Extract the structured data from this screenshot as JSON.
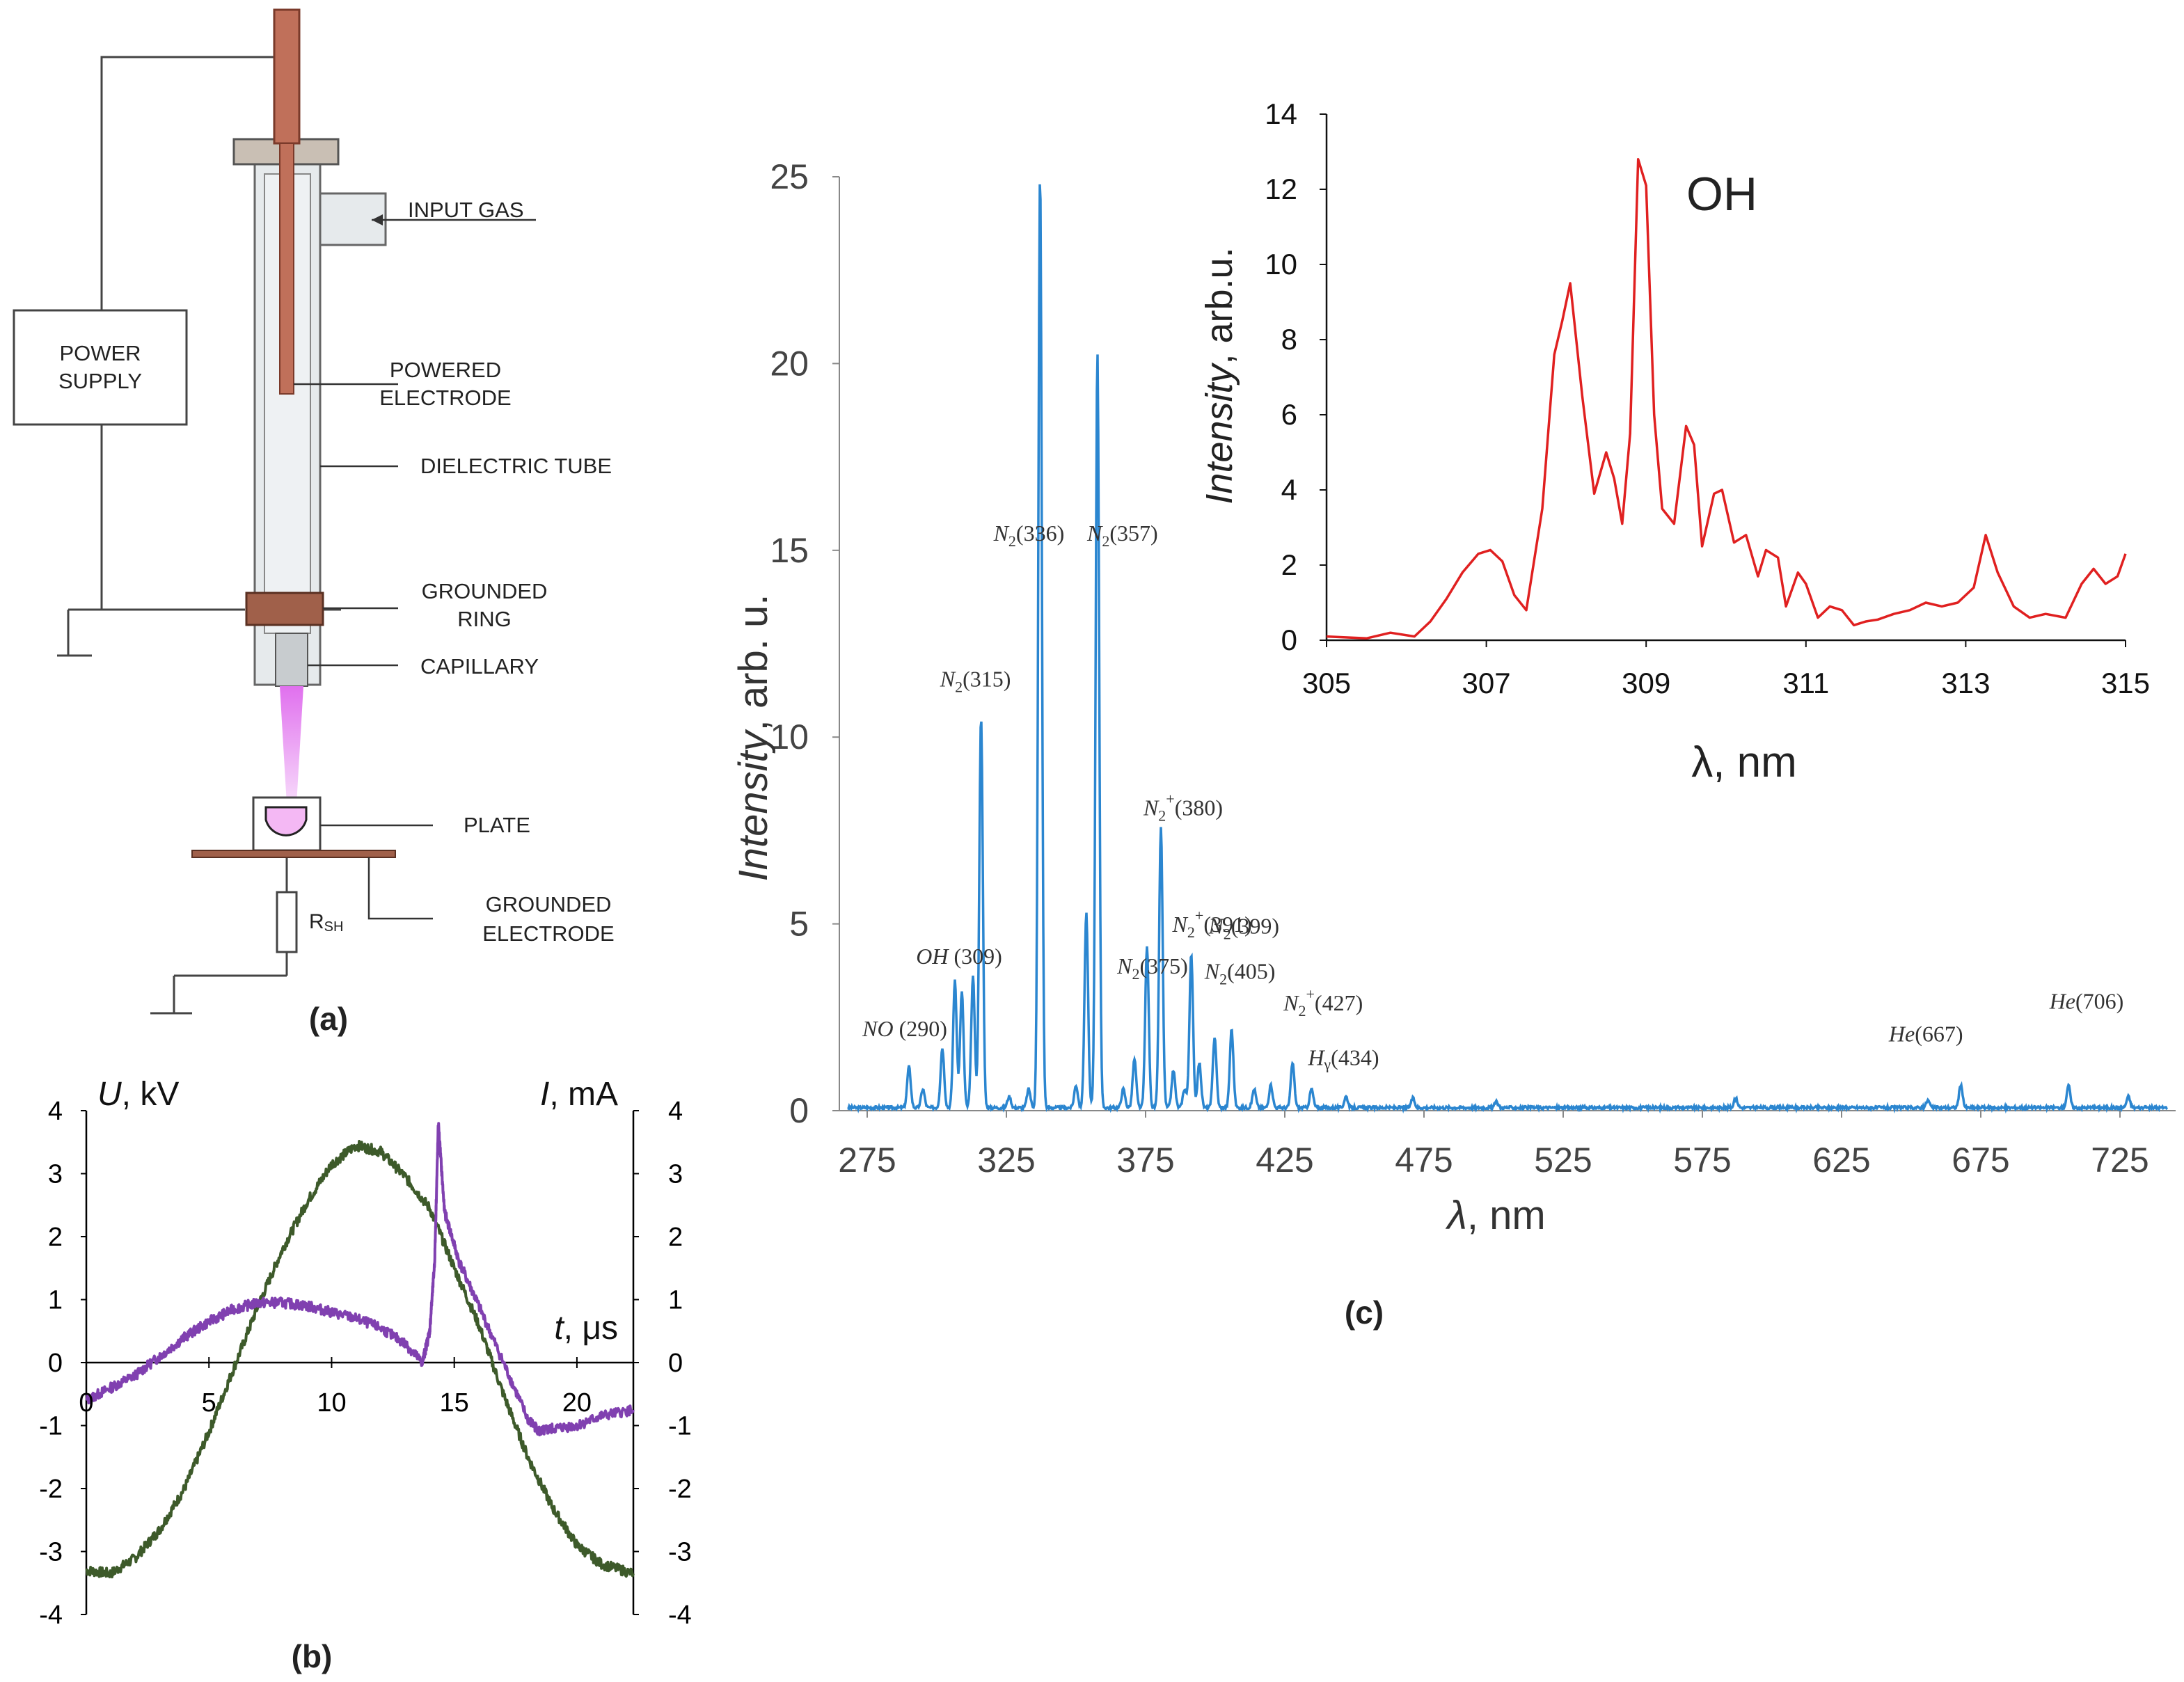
{
  "panel_a": {
    "caption": "(a)",
    "labels": {
      "power_supply": [
        "POWER",
        "SUPPLY"
      ],
      "input_gas": "INPUT GAS",
      "powered_electrode": [
        "POWERED",
        "ELECTRODE"
      ],
      "dielectric_tube": "DIELECTRIC TUBE",
      "grounded_ring": [
        "GROUNDED",
        "RING"
      ],
      "capillary": "CAPILLARY",
      "plate": "PLATE",
      "grounded_electrode": [
        "GROUNDED",
        "ELECTRODE"
      ],
      "resistor": "R",
      "resistor_sub": "SH"
    },
    "colors": {
      "electrode": "#c0705a",
      "ring": "#a0604a",
      "plasma": "#e070ee",
      "plate_fill": "#f4b8f4",
      "tube": "#e6eaec"
    }
  },
  "chart_data": [
    {
      "id": "b",
      "type": "line",
      "caption": "(b)",
      "left_axis_label": "U, kV",
      "right_axis_label": "I, mA",
      "xlabel": "t, μs",
      "xlim": [
        0,
        22.3
      ],
      "ylim": [
        -4,
        4
      ],
      "xticks": [
        "0",
        "5",
        "10",
        "15",
        "20"
      ],
      "yticks": [
        "4",
        "3",
        "2",
        "1",
        "0",
        "-1",
        "-2",
        "-3",
        "-4"
      ],
      "series": [
        {
          "name": "U",
          "color": "#3d5a2a",
          "x": [
            0,
            1,
            2,
            3,
            4,
            5,
            6,
            7,
            8,
            9,
            10,
            11,
            12,
            13,
            14,
            15,
            16,
            17,
            18,
            19,
            20,
            21,
            22.3
          ],
          "y": [
            -3.3,
            -3.35,
            -3.1,
            -2.65,
            -2.0,
            -1.1,
            -0.1,
            0.9,
            1.8,
            2.55,
            3.15,
            3.45,
            3.35,
            2.95,
            2.45,
            1.5,
            0.6,
            -0.5,
            -1.5,
            -2.3,
            -2.9,
            -3.2,
            -3.35
          ]
        },
        {
          "name": "I",
          "color": "#8040b0",
          "x": [
            0,
            1,
            2,
            3,
            4,
            5,
            6,
            7,
            8,
            9,
            10,
            11,
            12,
            13,
            13.7,
            14.0,
            14.2,
            14.35,
            14.6,
            15.2,
            16,
            17,
            18,
            18.5,
            19,
            20,
            21,
            22.3
          ],
          "y": [
            -0.6,
            -0.4,
            -0.2,
            0.1,
            0.4,
            0.65,
            0.85,
            0.95,
            0.95,
            0.9,
            0.8,
            0.7,
            0.55,
            0.3,
            0.0,
            0.5,
            1.6,
            3.8,
            2.4,
            1.6,
            0.9,
            0.0,
            -0.9,
            -1.1,
            -1.05,
            -1.0,
            -0.85,
            -0.75
          ]
        }
      ]
    },
    {
      "id": "c",
      "type": "line",
      "caption": "(c)",
      "xlabel": "λ, nm",
      "ylabel": "Intensity, arb. u.",
      "xlim": [
        265,
        745
      ],
      "ylim": [
        0,
        25
      ],
      "xticks": [
        "275",
        "325",
        "375",
        "425",
        "475",
        "525",
        "575",
        "625",
        "675",
        "725"
      ],
      "yticks": [
        "0",
        "5",
        "10",
        "15",
        "20",
        "25"
      ],
      "color": "#2b86d0",
      "peaks": [
        {
          "x": 290,
          "y": 1.1
        },
        {
          "x": 295,
          "y": 0.5
        },
        {
          "x": 302,
          "y": 1.6
        },
        {
          "x": 306.5,
          "y": 3.4
        },
        {
          "x": 309,
          "y": 3.1
        },
        {
          "x": 313,
          "y": 3.5
        },
        {
          "x": 315.9,
          "y": 10.5
        },
        {
          "x": 326,
          "y": 0.3
        },
        {
          "x": 333,
          "y": 0.5
        },
        {
          "x": 337.1,
          "y": 25
        },
        {
          "x": 350,
          "y": 0.6
        },
        {
          "x": 353.7,
          "y": 5.2
        },
        {
          "x": 357.7,
          "y": 20.2
        },
        {
          "x": 367,
          "y": 0.5
        },
        {
          "x": 371,
          "y": 1.3
        },
        {
          "x": 375.5,
          "y": 4.3
        },
        {
          "x": 380.5,
          "y": 7.5
        },
        {
          "x": 385,
          "y": 1.0
        },
        {
          "x": 389,
          "y": 0.5
        },
        {
          "x": 391.4,
          "y": 4.1
        },
        {
          "x": 394.3,
          "y": 1.2
        },
        {
          "x": 399.8,
          "y": 1.9
        },
        {
          "x": 405.9,
          "y": 2.1
        },
        {
          "x": 414,
          "y": 0.5
        },
        {
          "x": 420,
          "y": 0.6
        },
        {
          "x": 427.8,
          "y": 1.2
        },
        {
          "x": 434.6,
          "y": 0.5
        },
        {
          "x": 447,
          "y": 0.3
        },
        {
          "x": 471,
          "y": 0.25
        },
        {
          "x": 501,
          "y": 0.15
        },
        {
          "x": 587,
          "y": 0.25
        },
        {
          "x": 656,
          "y": 0.2
        },
        {
          "x": 667.8,
          "y": 0.6
        },
        {
          "x": 706.5,
          "y": 0.6
        },
        {
          "x": 728,
          "y": 0.3
        }
      ],
      "annotations": [
        {
          "text": "NO (290)",
          "x": 290,
          "y": 1.1
        },
        {
          "text": "OH (309)",
          "x": 309,
          "y": 3.3
        },
        {
          "text": "N2(315)",
          "x": 315.9,
          "y": 10.5
        },
        {
          "text": "N2(336)",
          "x": 337.1,
          "y": 12.5
        },
        {
          "text": "N2(357)",
          "x": 357.7,
          "y": 12.5
        },
        {
          "text": "N2(375)",
          "x": 375.5,
          "y": 4.3
        },
        {
          "text": "N2+(380)",
          "x": 380.5,
          "y": 7.5
        },
        {
          "text": "N2+(391)",
          "x": 391.4,
          "y": 5.5
        },
        {
          "text": "N2(399)",
          "x": 399.8,
          "y": 4.0
        },
        {
          "text": "N2(405)",
          "x": 405.9,
          "y": 2.9
        },
        {
          "text": "N2+(427)",
          "x": 427.8,
          "y": 1.9
        },
        {
          "text": "Hγ(434)",
          "x": 434.6,
          "y": 1.0
        },
        {
          "text": "He(667)",
          "x": 667.8,
          "y": 1.0
        },
        {
          "text": "He(706)",
          "x": 706.5,
          "y": 1.5
        }
      ]
    },
    {
      "id": "c-inset",
      "type": "line",
      "title": "OH",
      "xlabel": "λ, nm",
      "ylabel": "Intensity, arb.u.",
      "xlim": [
        305,
        315
      ],
      "ylim": [
        0,
        14
      ],
      "xticks": [
        "305",
        "307",
        "309",
        "311",
        "313",
        "315"
      ],
      "yticks": [
        "0",
        "2",
        "4",
        "6",
        "8",
        "10",
        "12",
        "14"
      ],
      "color": "#e02020",
      "x": [
        305,
        305.5,
        305.8,
        306.1,
        306.3,
        306.5,
        306.7,
        306.9,
        307.05,
        307.2,
        307.35,
        307.5,
        307.7,
        307.85,
        307.95,
        308.05,
        308.2,
        308.35,
        308.5,
        308.6,
        308.7,
        308.8,
        308.9,
        309.0,
        309.1,
        309.2,
        309.35,
        309.5,
        309.6,
        309.7,
        309.85,
        309.95,
        310.1,
        310.25,
        310.4,
        310.5,
        310.65,
        310.75,
        310.9,
        311.0,
        311.15,
        311.3,
        311.45,
        311.6,
        311.75,
        311.9,
        312.1,
        312.3,
        312.5,
        312.7,
        312.9,
        313.1,
        313.25,
        313.4,
        313.6,
        313.8,
        314.0,
        314.25,
        314.45,
        314.6,
        314.75,
        314.9,
        315.0
      ],
      "y": [
        0.1,
        0.05,
        0.2,
        0.1,
        0.5,
        1.1,
        1.8,
        2.3,
        2.4,
        2.1,
        1.2,
        0.8,
        3.5,
        7.6,
        8.5,
        9.5,
        6.5,
        3.9,
        5.0,
        4.3,
        3.1,
        5.5,
        12.8,
        12.1,
        6.0,
        3.5,
        3.1,
        5.7,
        5.2,
        2.5,
        3.9,
        4.0,
        2.6,
        2.8,
        1.7,
        2.4,
        2.2,
        0.9,
        1.8,
        1.5,
        0.6,
        0.9,
        0.8,
        0.4,
        0.5,
        0.55,
        0.7,
        0.8,
        1.0,
        0.9,
        1.0,
        1.4,
        2.8,
        1.8,
        0.9,
        0.6,
        0.7,
        0.6,
        1.5,
        1.9,
        1.5,
        1.7,
        2.3
      ]
    }
  ]
}
